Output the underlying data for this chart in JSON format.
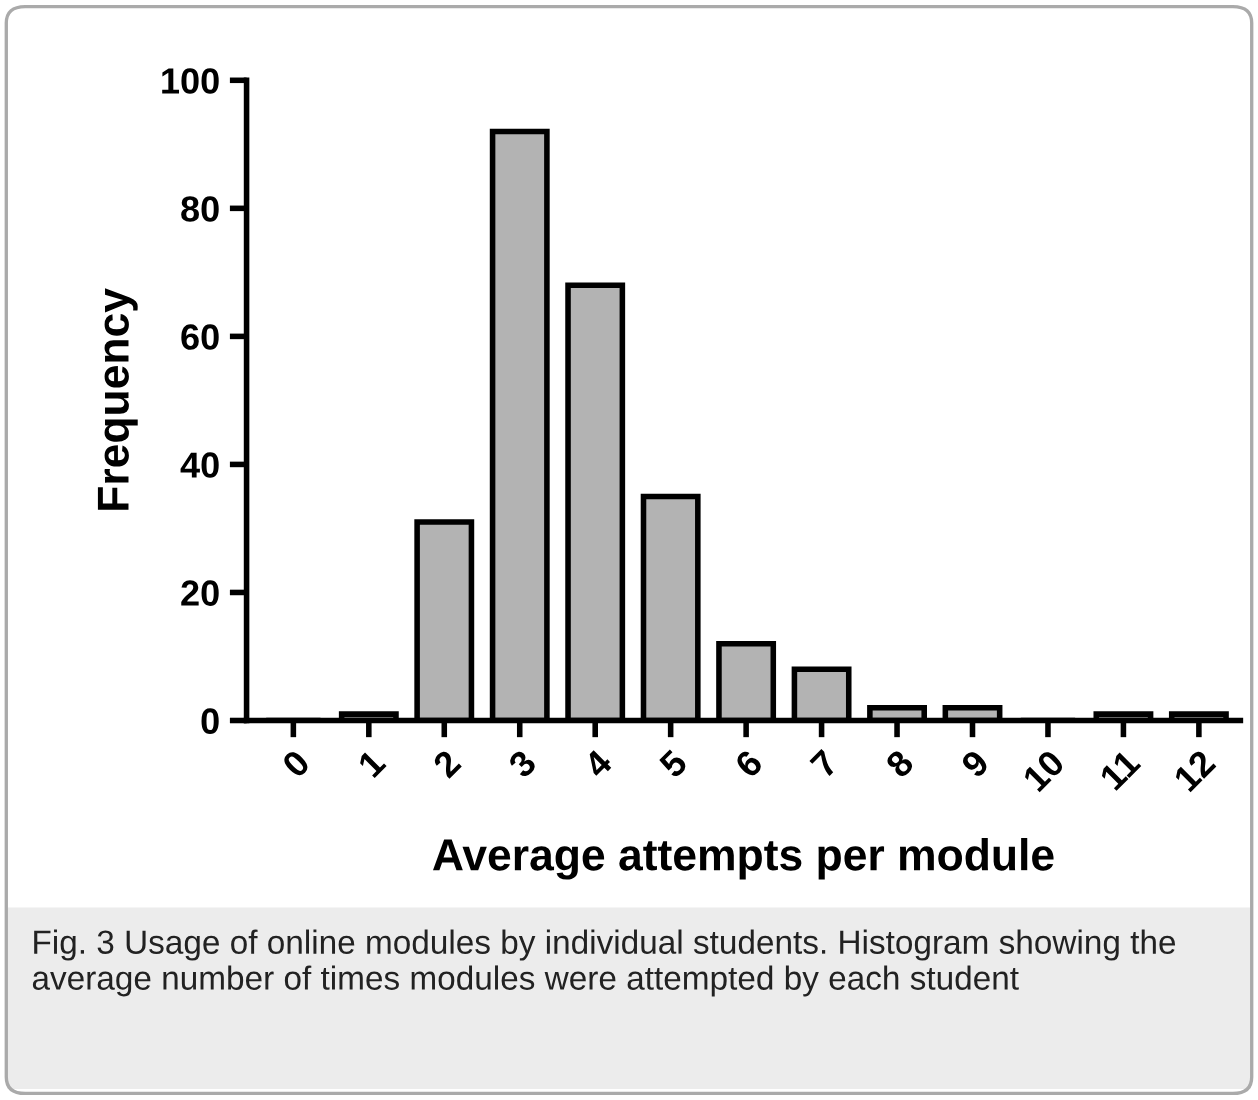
{
  "chart_data": {
    "type": "bar",
    "categories": [
      "0",
      "1",
      "2",
      "3",
      "4",
      "5",
      "6",
      "7",
      "8",
      "9",
      "10",
      "11",
      "12"
    ],
    "values": [
      0,
      1,
      31,
      92,
      68,
      35,
      12,
      8,
      2,
      2,
      0,
      1,
      1
    ],
    "color": "#b3b3b3",
    "xlabel": "Average attempts per module",
    "ylabel": "Frequency",
    "ylim": [
      0,
      100
    ],
    "yticks": [
      0,
      20,
      40,
      60,
      80,
      100
    ],
    "grid": false,
    "annotations": [
      "Fig. 3 Usage of online modules by individual students. Histogram showing the average number of times modules were attempted by each student"
    ]
  }
}
